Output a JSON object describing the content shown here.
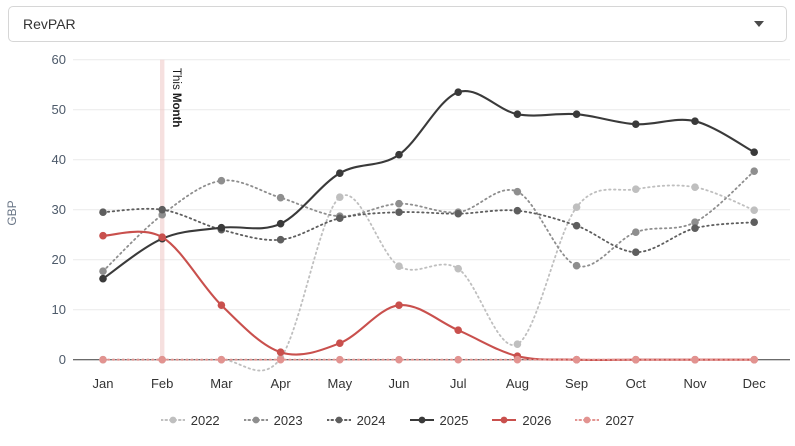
{
  "dropdown": {
    "selected": "RevPAR"
  },
  "chart_data": {
    "type": "line",
    "title": "",
    "xlabel": "",
    "ylabel": "GBP",
    "ylim": [
      0,
      60
    ],
    "yticks": [
      0,
      10,
      20,
      30,
      40,
      50,
      60
    ],
    "grid": true,
    "legend_position": "bottom",
    "categories": [
      "Jan",
      "Feb",
      "Mar",
      "Apr",
      "May",
      "Jun",
      "Jul",
      "Aug",
      "Sep",
      "Oct",
      "Nov",
      "Dec"
    ],
    "annotation": {
      "label_regular": "This ",
      "label_bold": "Month",
      "month": "Feb",
      "month_index": 1
    },
    "series": [
      {
        "name": "2022",
        "color": "#bfbfbf",
        "style": "dotted",
        "values": [
          0,
          0,
          0,
          0.3,
          32.5,
          18.7,
          18.2,
          3.1,
          30.5,
          34.1,
          34.5,
          29.9
        ]
      },
      {
        "name": "2023",
        "color": "#8e8e8e",
        "style": "dotted",
        "values": [
          17.7,
          29,
          35.8,
          32.4,
          28.7,
          31.2,
          29.5,
          33.6,
          18.8,
          25.5,
          27.5,
          37.7
        ]
      },
      {
        "name": "2024",
        "color": "#5e5e5e",
        "style": "dotted",
        "values": [
          29.5,
          30,
          26,
          24,
          28.3,
          29.5,
          29.2,
          29.8,
          26.8,
          21.5,
          26.3,
          27.5
        ]
      },
      {
        "name": "2025",
        "color": "#3a3a3a",
        "style": "solid",
        "values": [
          16.2,
          24.2,
          26.4,
          27.2,
          37.3,
          41,
          53.5,
          49.1,
          49.1,
          47.1,
          47.7,
          41.5
        ]
      },
      {
        "name": "2026",
        "color": "#c9504d",
        "style": "solid",
        "values": [
          24.8,
          24.5,
          10.9,
          1.5,
          3.3,
          10.9,
          5.9,
          0.7,
          0,
          0,
          0,
          0
        ]
      },
      {
        "name": "2027",
        "color": "#e29390",
        "style": "dotted",
        "values": [
          0,
          0,
          0,
          0,
          0,
          0,
          0,
          0,
          0,
          0,
          0,
          0
        ]
      }
    ],
    "colors": {
      "grid": "#eaeaea",
      "axis": "#3a3a3a",
      "tick_text": "#4d5a6a",
      "month_text": "#333333",
      "ylabel_text": "#697586",
      "annotation_text": "#1a1a1a",
      "annotation_band": "#eec7c5"
    }
  }
}
